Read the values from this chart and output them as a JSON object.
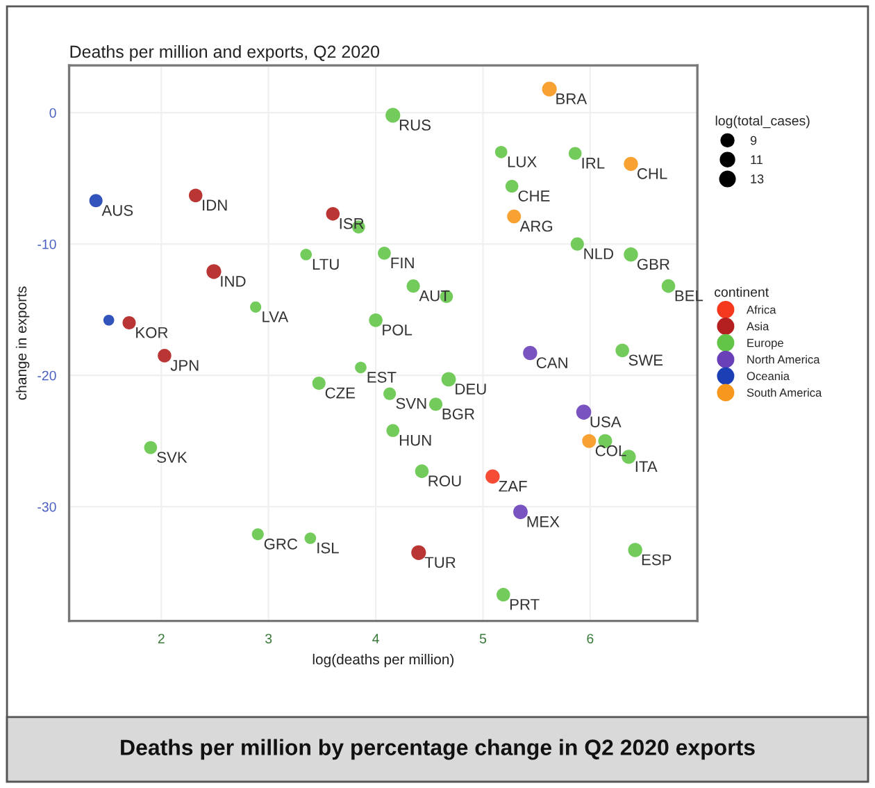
{
  "chart_data": {
    "type": "bubble",
    "title": "Deaths per million and exports, Q2 2020",
    "xlabel": "log(deaths per million)",
    "ylabel": "change in exports",
    "legend_title": "continent",
    "legend": "right",
    "xlim": [
      1.14,
      7.0
    ],
    "ylim": [
      -38.7,
      3.6
    ],
    "xticks": [
      2,
      3,
      4,
      5,
      6
    ],
    "yticks": [
      -30,
      -20,
      -10,
      0
    ],
    "grid": true,
    "size_legend": [
      9,
      11,
      13
    ],
    "series": [
      {
        "name": "Africa",
        "color": "#f5391f",
        "x": [
          5.09
        ],
        "values": [
          -27.7
        ],
        "sizes": [
          12
        ]
      },
      {
        "name": "Asia",
        "color": "#b3201f",
        "x": [
          2.32,
          3.6,
          2.49,
          1.7,
          2.03,
          4.4
        ],
        "values": [
          -6.3,
          -7.7,
          -12.1,
          -16.0,
          -18.5,
          -33.5
        ],
        "sizes": [
          11,
          11,
          13,
          10.5,
          11,
          13
        ]
      },
      {
        "name": "Europe",
        "color": "#63c548",
        "x": [
          4.16,
          3.84,
          3.35,
          4.08,
          4.35,
          4.66,
          2.88,
          4.0,
          5.17,
          5.86,
          5.27,
          5.88,
          6.38,
          6.73,
          6.3,
          3.86,
          3.47,
          4.68,
          4.13,
          4.56,
          4.16,
          1.9,
          4.43,
          2.9,
          3.39,
          6.14,
          6.36,
          6.42,
          5.19
        ],
        "values": [
          -0.2,
          -8.7,
          -10.8,
          -10.7,
          -13.2,
          -14.0,
          -14.8,
          -15.8,
          -3.0,
          -3.1,
          -5.6,
          -10.0,
          -10.8,
          -13.2,
          -18.1,
          -19.4,
          -20.6,
          -20.3,
          -21.4,
          -22.2,
          -24.2,
          -25.5,
          -27.3,
          -32.1,
          -32.4,
          -25.0,
          -26.2,
          -33.3,
          -36.7
        ],
        "sizes": [
          13,
          10,
          8,
          10,
          10.5,
          10,
          7.5,
          11,
          9,
          10,
          10,
          10.5,
          12,
          11,
          11,
          8,
          10.5,
          12.5,
          9.5,
          10.5,
          10,
          10,
          11,
          8.5,
          8,
          11.5,
          12,
          12,
          11
        ]
      },
      {
        "name": "North America",
        "color": "#6a40b8",
        "x": [
          5.44,
          5.94,
          5.35
        ],
        "values": [
          -18.3,
          -22.8,
          -30.4
        ],
        "sizes": [
          12,
          13.5,
          12.5
        ]
      },
      {
        "name": "Oceania",
        "color": "#1c3fb5",
        "x": [
          1.39,
          1.51
        ],
        "values": [
          -6.7,
          -15.8
        ],
        "sizes": [
          10.5,
          7
        ]
      },
      {
        "name": "South America",
        "color": "#f7981e",
        "x": [
          5.62,
          6.38,
          5.29,
          5.99
        ],
        "values": [
          1.8,
          -3.9,
          -7.9,
          -25.0
        ],
        "sizes": [
          13,
          12,
          11.5,
          11.5
        ]
      }
    ],
    "annotations": [
      {
        "text": "ZAF",
        "x": 5.09,
        "y": -27.7
      },
      {
        "text": "IDN",
        "x": 2.32,
        "y": -6.3
      },
      {
        "text": "ISR",
        "x": 3.6,
        "y": -7.7
      },
      {
        "text": "IND",
        "x": 2.49,
        "y": -12.1
      },
      {
        "text": "KOR",
        "x": 1.7,
        "y": -16.0
      },
      {
        "text": "JPN",
        "x": 2.03,
        "y": -18.5
      },
      {
        "text": "TUR",
        "x": 4.4,
        "y": -33.5
      },
      {
        "text": "RUS",
        "x": 4.16,
        "y": -0.2
      },
      {
        "text": "LTU",
        "x": 3.35,
        "y": -10.8
      },
      {
        "text": "FIN",
        "x": 4.08,
        "y": -10.7
      },
      {
        "text": "AUT",
        "x": 4.35,
        "y": -13.2
      },
      {
        "text": "LVA",
        "x": 2.88,
        "y": -14.8
      },
      {
        "text": "POL",
        "x": 4.0,
        "y": -15.8
      },
      {
        "text": "LUX",
        "x": 5.17,
        "y": -3.0
      },
      {
        "text": "IRL",
        "x": 5.86,
        "y": -3.1
      },
      {
        "text": "CHE",
        "x": 5.27,
        "y": -5.6
      },
      {
        "text": "NLD",
        "x": 5.88,
        "y": -10.0
      },
      {
        "text": "GBR",
        "x": 6.38,
        "y": -10.8
      },
      {
        "text": "BEL",
        "x": 6.73,
        "y": -13.2
      },
      {
        "text": "SWE",
        "x": 6.3,
        "y": -18.1
      },
      {
        "text": "EST",
        "x": 3.86,
        "y": -19.4
      },
      {
        "text": "CZE",
        "x": 3.47,
        "y": -20.6
      },
      {
        "text": "DEU",
        "x": 4.68,
        "y": -20.3
      },
      {
        "text": "SVN",
        "x": 4.13,
        "y": -21.4
      },
      {
        "text": "BGR",
        "x": 4.56,
        "y": -22.2
      },
      {
        "text": "HUN",
        "x": 4.16,
        "y": -24.2
      },
      {
        "text": "SVK",
        "x": 1.9,
        "y": -25.5
      },
      {
        "text": "ROU",
        "x": 4.43,
        "y": -27.3
      },
      {
        "text": "GRC",
        "x": 2.9,
        "y": -32.1
      },
      {
        "text": "ISL",
        "x": 3.39,
        "y": -32.4
      },
      {
        "text": "ITA",
        "x": 6.36,
        "y": -26.2
      },
      {
        "text": "ESP",
        "x": 6.42,
        "y": -33.3
      },
      {
        "text": "PRT",
        "x": 5.19,
        "y": -36.7
      },
      {
        "text": "CAN",
        "x": 5.44,
        "y": -18.3
      },
      {
        "text": "USA",
        "x": 5.94,
        "y": -22.8
      },
      {
        "text": "MEX",
        "x": 5.35,
        "y": -30.4
      },
      {
        "text": "AUS",
        "x": 1.39,
        "y": -6.7
      },
      {
        "text": "BRA",
        "x": 5.62,
        "y": 1.8
      },
      {
        "text": "CHL",
        "x": 6.38,
        "y": -3.9
      },
      {
        "text": "ARG",
        "x": 5.29,
        "y": -7.9
      },
      {
        "text": "COL",
        "x": 5.99,
        "y": -25.0
      },
      "log(total_cases)",
      "Deaths per million by percentage change in Q2 2020 exports"
    ]
  }
}
